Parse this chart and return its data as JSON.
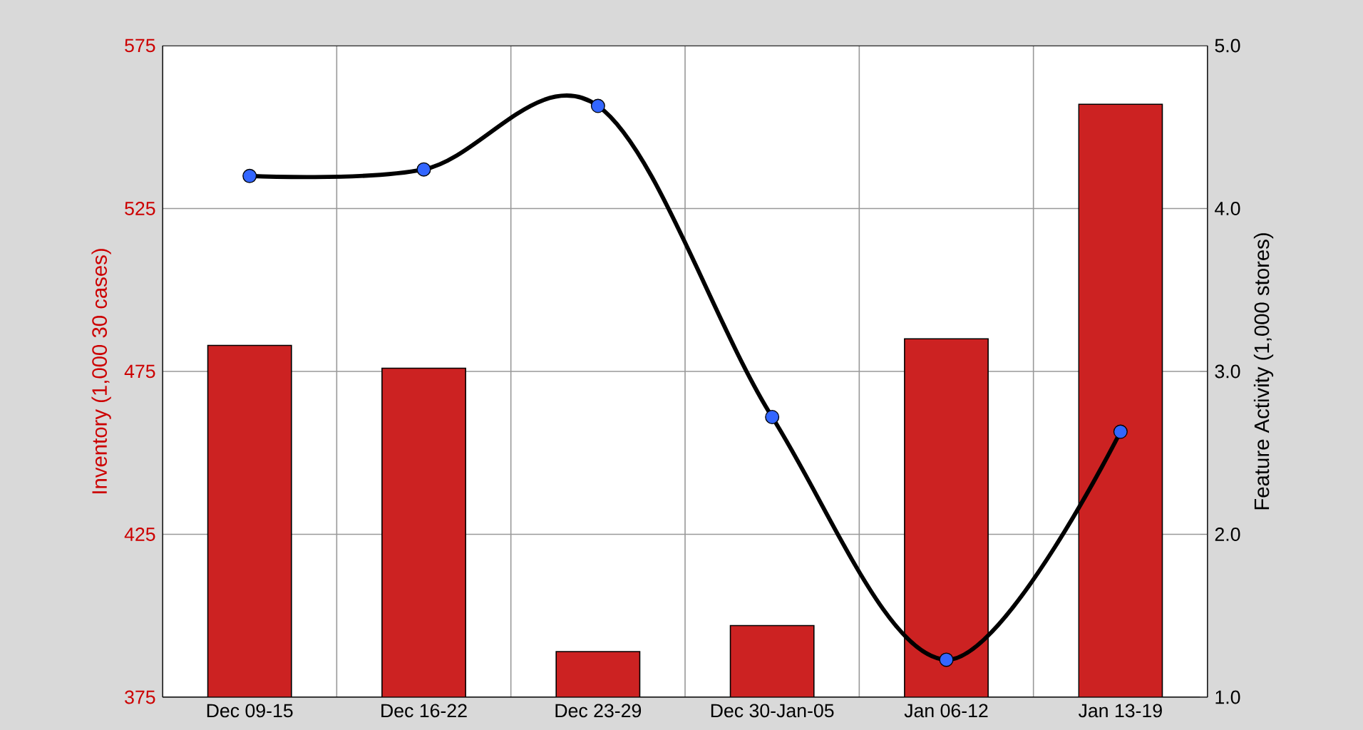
{
  "chart_data": {
    "type": "bar",
    "ylabel": "Inventory (1,000 30  cases)",
    "y2label": "Feature Activity (1,000 stores)",
    "categories": [
      "Dec 09-15",
      "Dec 16-22",
      "Dec 23-29",
      "Dec 30-Jan-05",
      "Jan 06-12",
      "Jan 13-19"
    ],
    "series": [
      {
        "color": "#cc2222",
        "values": [
          483,
          476,
          389,
          397,
          485,
          557
        ]
      },
      {
        "type": "line",
        "axis": "y2",
        "color": "#000000",
        "colors": [
          "#3366ff",
          "#3366ff",
          "#3366ff",
          "#3366ff",
          "#3366ff",
          "#3366ff"
        ],
        "marker": "circle",
        "values": [
          4.2,
          4.24,
          4.63,
          2.72,
          1.23,
          2.63
        ]
      }
    ],
    "ylim": [
      375,
      575
    ],
    "yticks": [
      375,
      425,
      475,
      525,
      575
    ],
    "y2lim": [
      1.0,
      5.0
    ],
    "y2ticks": [
      {
        "value": 1,
        "label": "1.0"
      },
      {
        "value": 2,
        "label": "2.0"
      },
      {
        "value": 3,
        "label": "3.0"
      },
      {
        "value": 4,
        "label": "4.0"
      },
      {
        "value": 5,
        "label": "5.0"
      }
    ],
    "grid": true
  }
}
